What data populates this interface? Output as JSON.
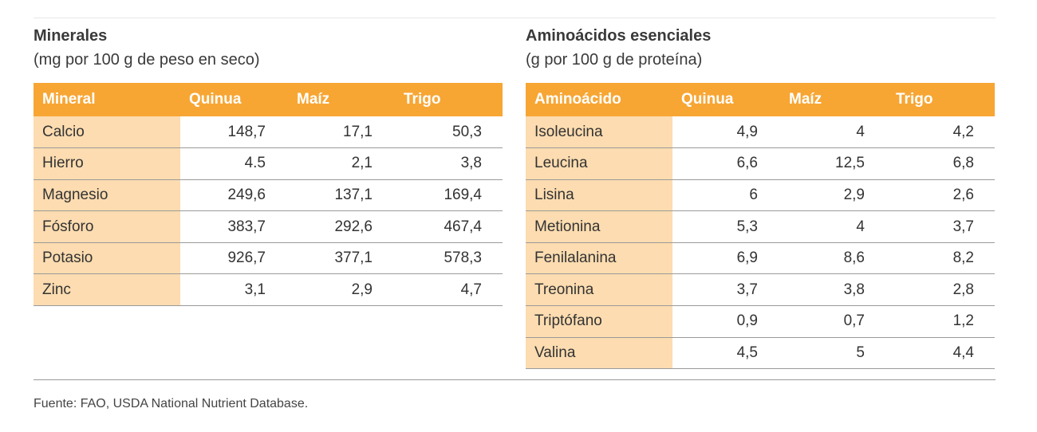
{
  "minerals": {
    "title": "Minerales",
    "subtitle": "(mg por 100 g de peso en seco)",
    "headers": [
      "Mineral",
      "Quinua",
      "Maíz",
      "Trigo"
    ],
    "rows": [
      {
        "name": "Calcio",
        "quinua": "148,7",
        "maiz": "17,1",
        "trigo": "50,3"
      },
      {
        "name": "Hierro",
        "quinua": "4.5",
        "maiz": "2,1",
        "trigo": "3,8"
      },
      {
        "name": "Magnesio",
        "quinua": "249,6",
        "maiz": "137,1",
        "trigo": "169,4"
      },
      {
        "name": "Fósforo",
        "quinua": "383,7",
        "maiz": "292,6",
        "trigo": "467,4"
      },
      {
        "name": "Potasio",
        "quinua": "926,7",
        "maiz": "377,1",
        "trigo": "578,3"
      },
      {
        "name": "Zinc",
        "quinua": "3,1",
        "maiz": "2,9",
        "trigo": "4,7"
      }
    ]
  },
  "amino": {
    "title": "Aminoácidos esenciales",
    "subtitle": "(g por 100 g de proteína)",
    "headers": [
      "Aminoácido",
      "Quinua",
      "Maíz",
      "Trigo"
    ],
    "rows": [
      {
        "name": "Isoleucina",
        "quinua": "4,9",
        "maiz": "4",
        "trigo": "4,2"
      },
      {
        "name": "Leucina",
        "quinua": "6,6",
        "maiz": "12,5",
        "trigo": "6,8"
      },
      {
        "name": "Lisina",
        "quinua": "6",
        "maiz": "2,9",
        "trigo": "2,6"
      },
      {
        "name": "Metionina",
        "quinua": "5,3",
        "maiz": "4",
        "trigo": "3,7"
      },
      {
        "name": "Fenilalanina",
        "quinua": "6,9",
        "maiz": "8,6",
        "trigo": "8,2"
      },
      {
        "name": "Treonina",
        "quinua": "3,7",
        "maiz": "3,8",
        "trigo": "2,8"
      },
      {
        "name": "Triptófano",
        "quinua": "0,9",
        "maiz": "0,7",
        "trigo": "1,2"
      },
      {
        "name": "Valina",
        "quinua": "4,5",
        "maiz": "5",
        "trigo": "4,4"
      }
    ]
  },
  "footer": {
    "source": "Fuente: FAO, USDA National Nutrient Database."
  },
  "colors": {
    "header_orange": "#f7a634",
    "name_cell_peach": "#fcdcb0"
  }
}
